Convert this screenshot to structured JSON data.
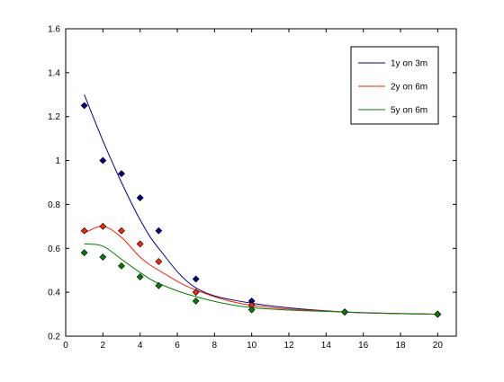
{
  "chart_data": {
    "type": "line",
    "title": "",
    "xlabel": "",
    "ylabel": "",
    "xlim": [
      0,
      21
    ],
    "ylim": [
      0.2,
      1.6
    ],
    "x_ticks": [
      "0",
      "2",
      "4",
      "6",
      "8",
      "10",
      "12",
      "14",
      "16",
      "18",
      "20"
    ],
    "y_ticks": [
      "0.2",
      "0.4",
      "0.6",
      "0.8",
      "1",
      "1.2",
      "1.4",
      "1.6"
    ],
    "grid": false,
    "legend_position": "top-right",
    "series": [
      {
        "name": "1y on 3m",
        "color": "#00008B",
        "line": {
          "x": [
            1,
            2,
            3,
            4,
            5,
            7,
            10,
            15,
            20
          ],
          "y": [
            1.3,
            1.09,
            0.9,
            0.73,
            0.6,
            0.42,
            0.35,
            0.31,
            0.3
          ]
        },
        "points": {
          "x": [
            1,
            2,
            3,
            4,
            5,
            7,
            10,
            15,
            20
          ],
          "y": [
            1.25,
            1.0,
            0.94,
            0.83,
            0.68,
            0.46,
            0.36,
            0.31,
            0.3
          ]
        }
      },
      {
        "name": "2y on 6m",
        "color": "#FF2400",
        "line": {
          "x": [
            1,
            2,
            3,
            4,
            5,
            7,
            10,
            15,
            20
          ],
          "y": [
            0.67,
            0.7,
            0.65,
            0.56,
            0.5,
            0.41,
            0.34,
            0.31,
            0.3
          ]
        },
        "points": {
          "x": [
            1,
            2,
            3,
            4,
            5,
            7,
            10,
            15,
            20
          ],
          "y": [
            0.68,
            0.7,
            0.68,
            0.62,
            0.54,
            0.4,
            0.34,
            0.31,
            0.3
          ]
        }
      },
      {
        "name": "5y on 6m",
        "color": "#008000",
        "line": {
          "x": [
            1,
            2,
            3,
            4,
            5,
            7,
            10,
            15,
            20
          ],
          "y": [
            0.62,
            0.61,
            0.55,
            0.49,
            0.44,
            0.38,
            0.33,
            0.31,
            0.3
          ]
        },
        "points": {
          "x": [
            1,
            2,
            3,
            4,
            5,
            7,
            10,
            15,
            20
          ],
          "y": [
            0.58,
            0.56,
            0.52,
            0.47,
            0.43,
            0.36,
            0.32,
            0.31,
            0.3
          ]
        }
      }
    ]
  }
}
